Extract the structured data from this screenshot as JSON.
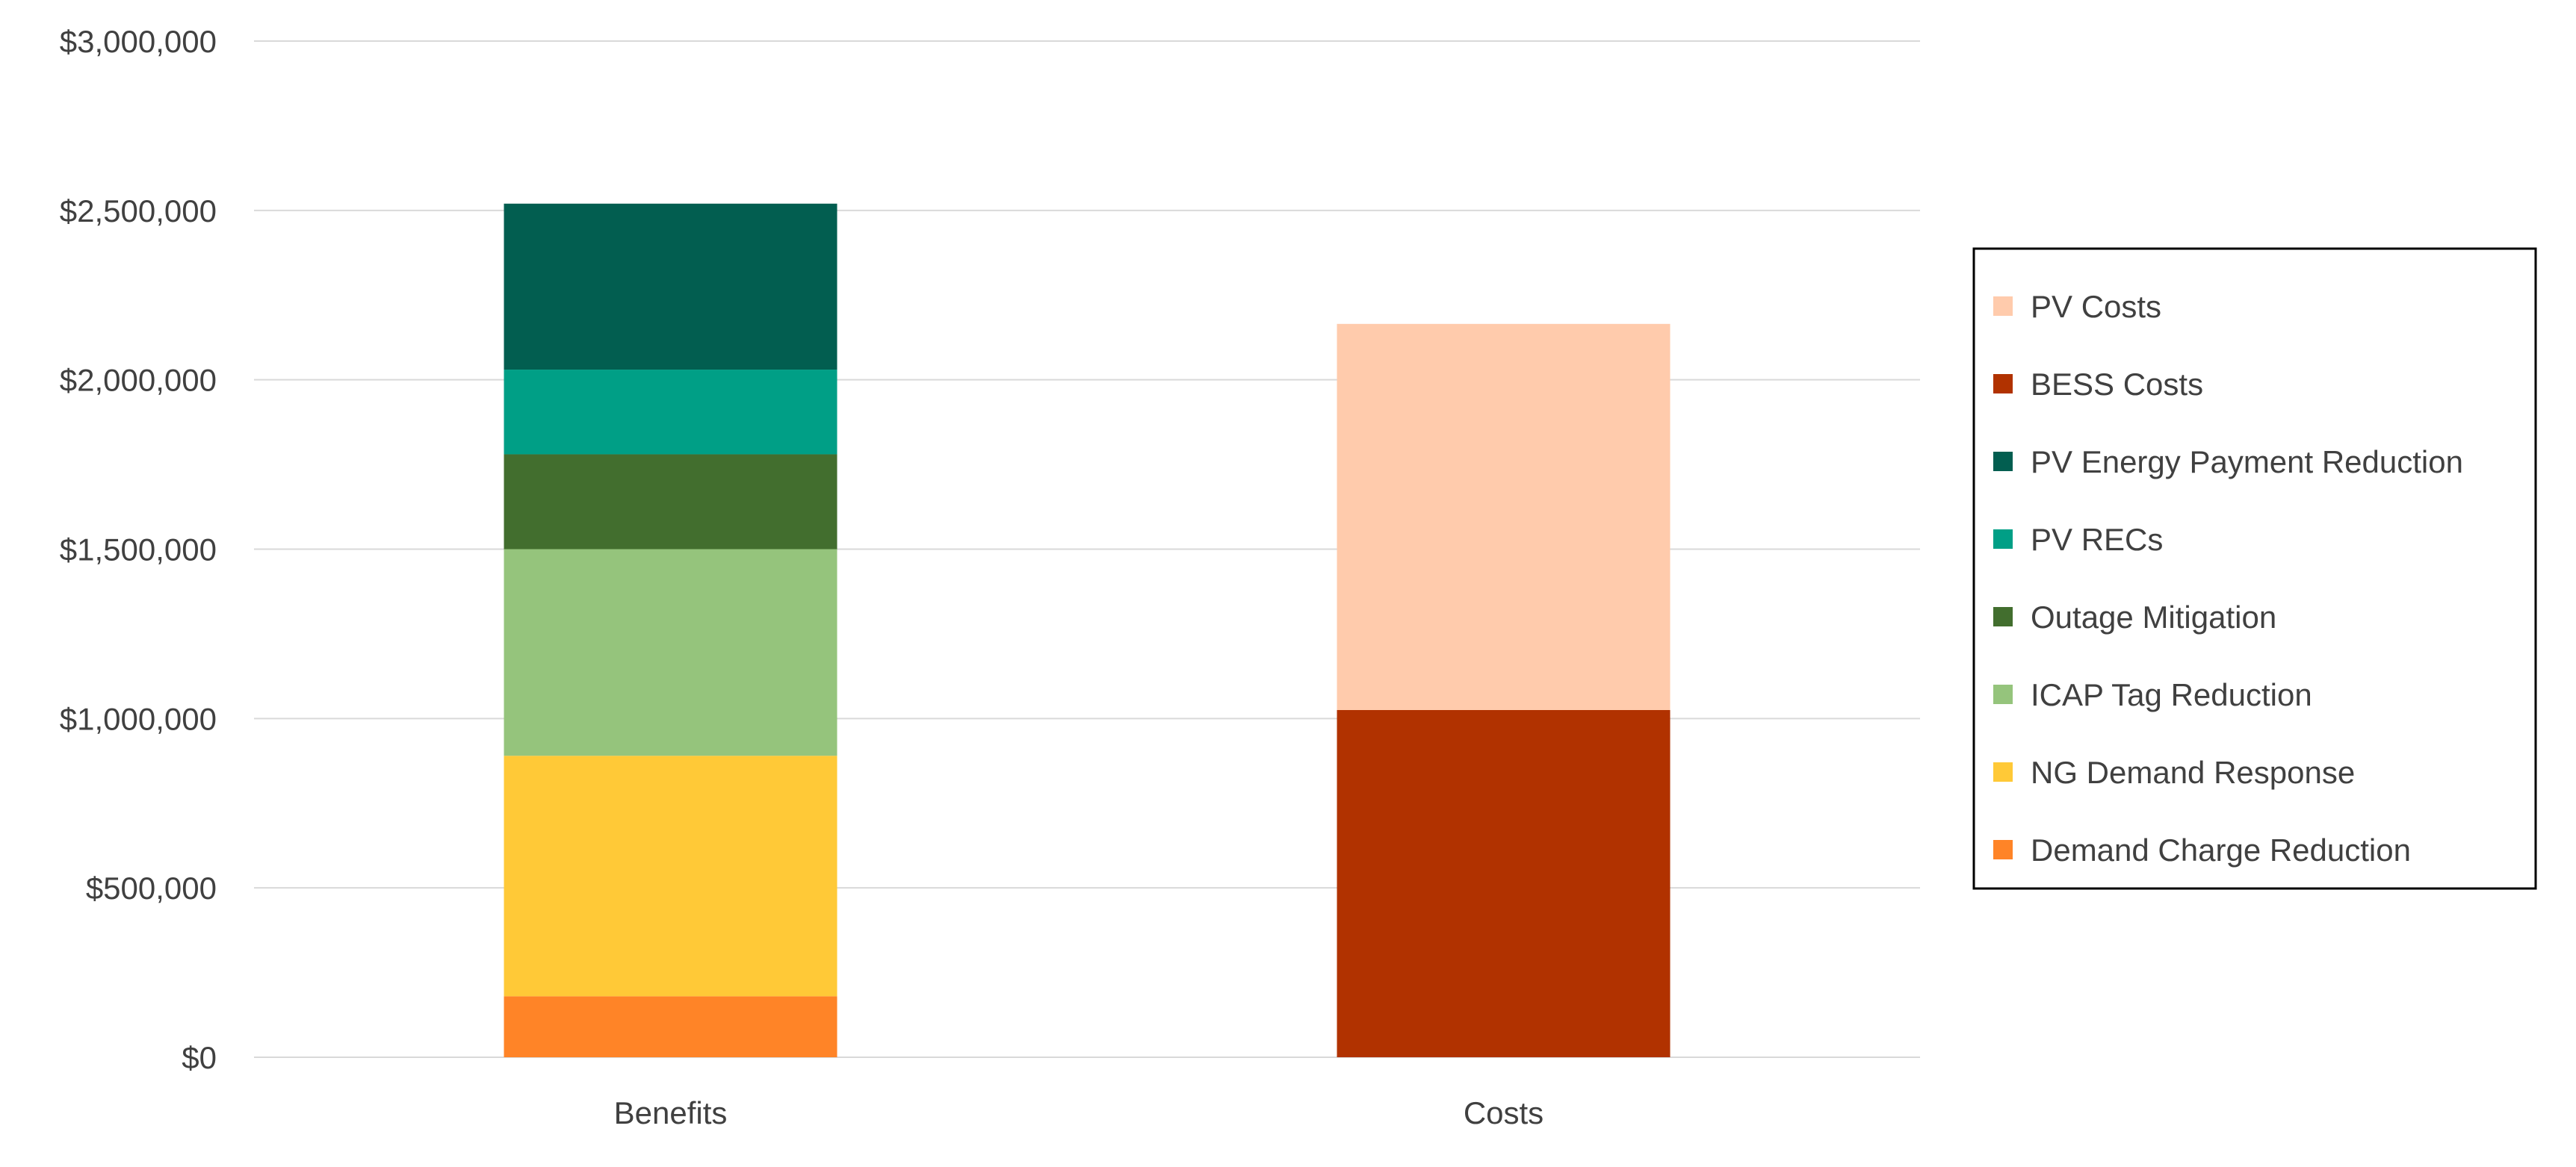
{
  "chart_data": {
    "type": "bar",
    "stacked": true,
    "title": "",
    "xlabel": "",
    "ylabel": "",
    "ylim": [
      0,
      3000000
    ],
    "y_tick_step": 500000,
    "y_tick_labels": [
      "$0",
      "$500,000",
      "$1,000,000",
      "$1,500,000",
      "$2,000,000",
      "$2,500,000",
      "$3,000,000"
    ],
    "grid": true,
    "legend_position": "right",
    "categories": [
      "Benefits",
      "Costs"
    ],
    "series": [
      {
        "name": "Demand Charge Reduction",
        "color": "#FF8427",
        "values": [
          180000,
          0
        ]
      },
      {
        "name": "NG Demand Response",
        "color": "#FFC937",
        "values": [
          710000,
          0
        ]
      },
      {
        "name": "ICAP Tag Reduction",
        "color": "#95C47C",
        "values": [
          610000,
          0
        ]
      },
      {
        "name": "Outage Mitigation",
        "color": "#426E2E",
        "values": [
          280000,
          0
        ]
      },
      {
        "name": "PV RECs",
        "color": "#009F86",
        "values": [
          250000,
          0
        ]
      },
      {
        "name": "PV Energy Payment Reduction",
        "color": "#025E50",
        "values": [
          490000,
          0
        ]
      },
      {
        "name": "BESS Costs",
        "color": "#B13200",
        "values": [
          0,
          1025000
        ]
      },
      {
        "name": "PV Costs",
        "color": "#FFCBAC",
        "values": [
          0,
          1140000
        ]
      }
    ],
    "legend_order": [
      "PV Costs",
      "BESS Costs",
      "PV Energy Payment Reduction",
      "PV RECs",
      "Outage Mitigation",
      "ICAP Tag Reduction",
      "NG Demand Response",
      "Demand Charge Reduction"
    ]
  }
}
